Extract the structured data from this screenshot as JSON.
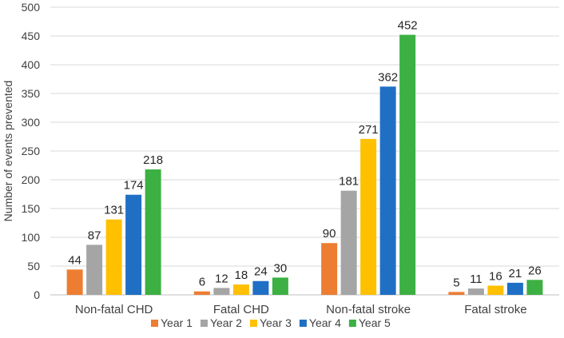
{
  "chart_data": {
    "type": "bar",
    "title": "",
    "xlabel": "",
    "ylabel": "Number of events prevented",
    "ylim": [
      0,
      500
    ],
    "yticks": [
      0,
      50,
      100,
      150,
      200,
      250,
      300,
      350,
      400,
      450,
      500
    ],
    "grid": true,
    "legend_position": "bottom",
    "categories": [
      "Non-fatal CHD",
      "Fatal CHD",
      "Non-fatal stroke",
      "Fatal stroke"
    ],
    "series": [
      {
        "name": "Year 1",
        "color": "#ED7D31",
        "values": [
          44,
          6,
          90,
          5
        ]
      },
      {
        "name": "Year 2",
        "color": "#A5A5A5",
        "values": [
          87,
          12,
          181,
          11
        ]
      },
      {
        "name": "Year 3",
        "color": "#FFC000",
        "values": [
          131,
          18,
          271,
          16
        ]
      },
      {
        "name": "Year 4",
        "color": "#1F6FC5",
        "values": [
          174,
          24,
          362,
          21
        ]
      },
      {
        "name": "Year 5",
        "color": "#3CB043",
        "values": [
          218,
          30,
          452,
          26
        ]
      }
    ]
  }
}
